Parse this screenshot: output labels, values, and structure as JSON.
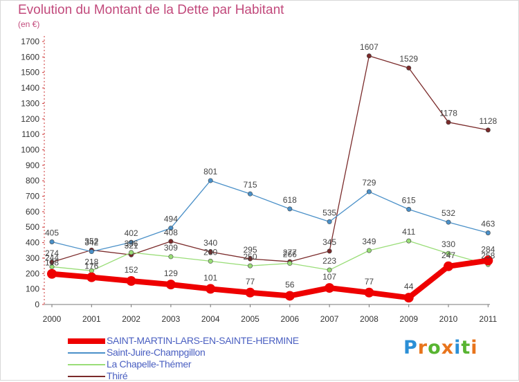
{
  "title": "Evolution du Montant de la Dette par Habitant",
  "unit_label": "(en €)",
  "logo": {
    "text": "Proxiti",
    "letter_colors": [
      "#2b8fd6",
      "#e8741c",
      "#58b431",
      "#e8741c",
      "#2b8fd6",
      "#58b431",
      "#e8741c"
    ]
  },
  "chart_data": {
    "type": "line",
    "x": [
      "2000",
      "2001",
      "2002",
      "2003",
      "2004",
      "2005",
      "2006",
      "2007",
      "2008",
      "2009",
      "2010",
      "2011"
    ],
    "ylim": [
      0,
      1700
    ],
    "yticks": [
      0,
      100,
      200,
      300,
      400,
      500,
      600,
      700,
      800,
      900,
      1000,
      1100,
      1200,
      1300,
      1400,
      1500,
      1600,
      1700
    ],
    "grid": false,
    "legend_position": "bottom-left",
    "series": [
      {
        "name": "SAINT-MARTIN-LARS-EN-SAINTE-HERMINE",
        "color": "#ee0000",
        "values": [
          198,
          176,
          152,
          129,
          101,
          77,
          56,
          107,
          77,
          44,
          247,
          284
        ],
        "labels": [
          "198",
          "176",
          "152",
          "129",
          "101",
          "77",
          "56",
          "107",
          "77",
          "44",
          "247",
          "284"
        ]
      },
      {
        "name": "Saint-Juire-Champgillon",
        "color": "#4a90c8",
        "values": [
          405,
          342,
          402,
          494,
          801,
          715,
          618,
          535,
          729,
          615,
          532,
          463
        ],
        "labels": [
          "405",
          "342",
          "402",
          "494",
          "801",
          "715",
          "618",
          "535",
          "729",
          "615",
          "532",
          "463"
        ]
      },
      {
        "name": "La Chapelle-Thémer",
        "color": "#99dd77",
        "values": [
          244,
          218,
          336,
          309,
          280,
          250,
          266,
          223,
          349,
          411,
          330,
          258
        ],
        "labels": [
          "244",
          "218",
          "336",
          "309",
          "280",
          "250",
          "266",
          "223",
          "349",
          "411",
          "330",
          "258"
        ]
      },
      {
        "name": "Thiré",
        "color": "#7a2a2a",
        "values": [
          274,
          352,
          321,
          408,
          340,
          295,
          277,
          345,
          1607,
          1529,
          1178,
          1128
        ],
        "labels": [
          "274",
          "352",
          "321",
          "408",
          "340",
          "295",
          "277",
          "345",
          "1607",
          "1529",
          "1178",
          "1128"
        ]
      }
    ]
  }
}
